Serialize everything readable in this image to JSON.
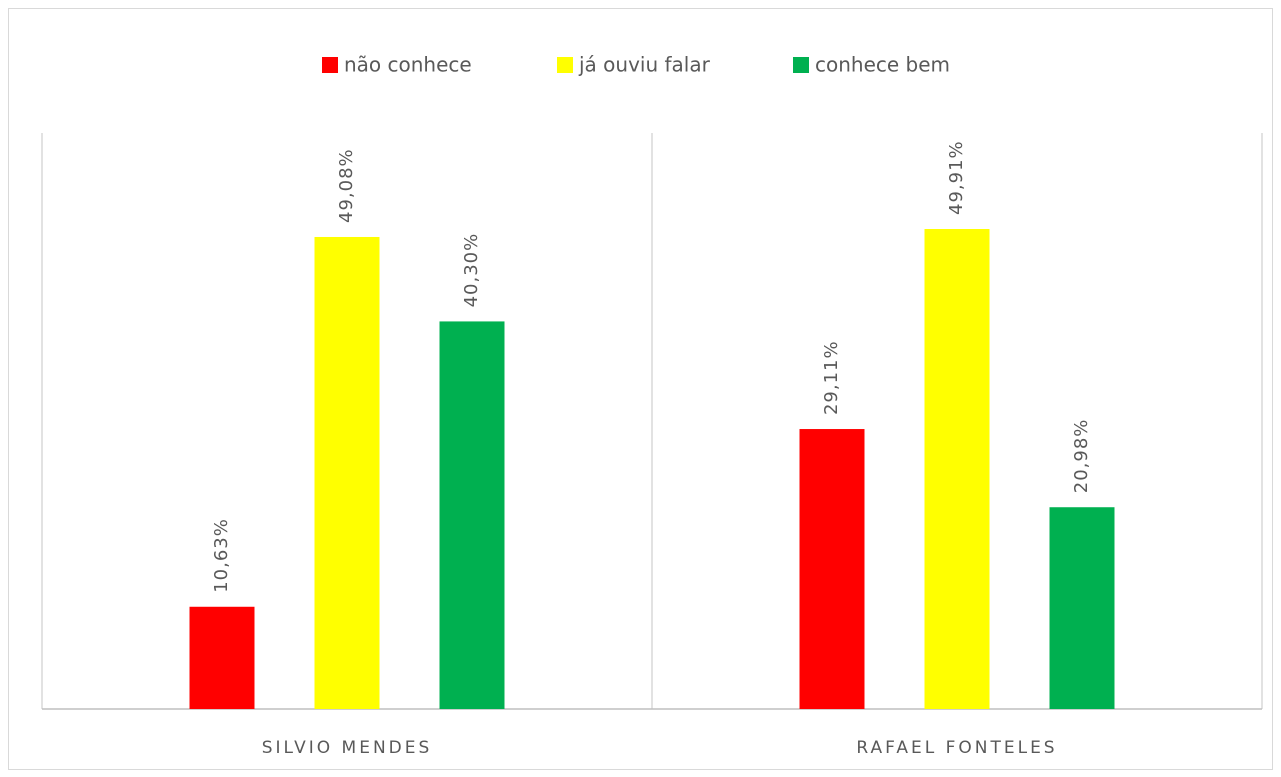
{
  "chart_data": {
    "type": "bar",
    "categories": [
      "SILVIO MENDES",
      "RAFAEL FONTELES"
    ],
    "series": [
      {
        "name": "não conhece",
        "color": "#ff0000",
        "values": [
          10.63,
          29.11
        ],
        "value_labels": [
          "10,63%",
          "29,11%"
        ]
      },
      {
        "name": "já ouviu falar",
        "color": "#ffff00",
        "values": [
          49.08,
          49.91
        ],
        "value_labels": [
          "49,08%",
          "49,91%"
        ]
      },
      {
        "name": "conhece bem",
        "color": "#00b050",
        "values": [
          40.3,
          20.98
        ],
        "value_labels": [
          "40,30%",
          "20,98%"
        ]
      }
    ],
    "legend": "top"
  }
}
